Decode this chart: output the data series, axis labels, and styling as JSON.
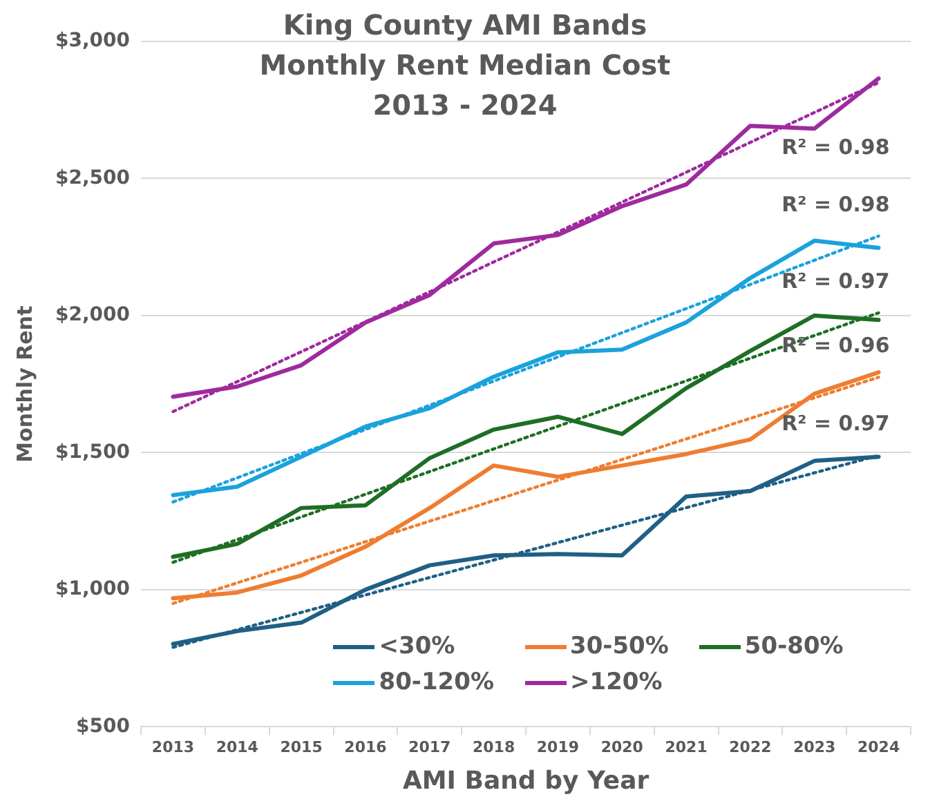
{
  "chart_data": {
    "type": "line",
    "title": "King County AMI Bands\nMonthly Rent Median Cost\n2013 - 2024",
    "xlabel": "AMI Band by Year",
    "ylabel": "Monthly Rent",
    "categories": [
      "2013",
      "2014",
      "2015",
      "2016",
      "2017",
      "2018",
      "2019",
      "2020",
      "2021",
      "2022",
      "2023",
      "2024"
    ],
    "series": [
      {
        "name": "<30%",
        "color": "#1f5f85",
        "values": [
          802,
          849,
          880,
          1000,
          1089,
          1125,
          1130,
          1125,
          1340,
          1360,
          1470,
          1485
        ]
      },
      {
        "name": "30-50%",
        "color": "#ee7d31",
        "values": [
          969,
          990,
          1052,
          1157,
          1298,
          1453,
          1412,
          1453,
          1495,
          1548,
          1715,
          1793
        ]
      },
      {
        "name": "50-80%",
        "color": "#1e6e25",
        "values": [
          1120,
          1167,
          1298,
          1308,
          1480,
          1584,
          1631,
          1568,
          1735,
          1871,
          2000,
          1984
        ]
      },
      {
        "name": "80-120%",
        "color": "#1aa2dc",
        "values": [
          1345,
          1376,
          1485,
          1595,
          1662,
          1777,
          1866,
          1876,
          1975,
          2137,
          2273,
          2247
        ]
      },
      {
        "name": ">120%",
        "color": "#9e2a9e",
        "values": [
          1704,
          1741,
          1819,
          1975,
          2075,
          2263,
          2294,
          2399,
          2478,
          2692,
          2682,
          2865
        ]
      },
      {
        "type": "line",
        "line_style": "dotted",
        "color": "#1f5f85",
        "values": [
          790,
          null,
          null,
          null,
          null,
          null,
          null,
          null,
          null,
          null,
          null,
          1490
        ]
      },
      {
        "type": "line",
        "line_style": "dotted",
        "color": "#ee7d31",
        "values": [
          950,
          null,
          null,
          null,
          null,
          null,
          null,
          null,
          null,
          null,
          null,
          1775
        ]
      },
      {
        "type": "line",
        "line_style": "dotted",
        "color": "#1e6e25",
        "values": [
          1100,
          null,
          null,
          null,
          null,
          null,
          null,
          null,
          null,
          null,
          null,
          2010
        ]
      },
      {
        "type": "line",
        "line_style": "dotted",
        "color": "#1aa2dc",
        "values": [
          1320,
          null,
          null,
          null,
          null,
          null,
          null,
          null,
          null,
          null,
          null,
          2290
        ]
      },
      {
        "type": "line",
        "line_style": "dotted",
        "color": "#9e2a9e",
        "values": [
          1650,
          null,
          null,
          null,
          null,
          null,
          null,
          null,
          null,
          null,
          null,
          2850
        ]
      }
    ],
    "ylim": [
      500,
      3000
    ],
    "yticks": [
      {
        "value": 500,
        "label": "$500"
      },
      {
        "value": 1000,
        "label": "$1,000"
      },
      {
        "value": 1500,
        "label": "$1,500"
      },
      {
        "value": 2000,
        "label": "$2,000"
      },
      {
        "value": 2500,
        "label": "$2,500"
      },
      {
        "value": 3000,
        "label": "$3,000"
      }
    ],
    "grid": "y",
    "legend": "bottom",
    "marker": "none",
    "line_style": "solid",
    "annotations": [
      "R² = 0.98",
      "R² = 0.98",
      "R² = 0.97",
      "R² = 0.96",
      "R² = 0.97"
    ]
  }
}
